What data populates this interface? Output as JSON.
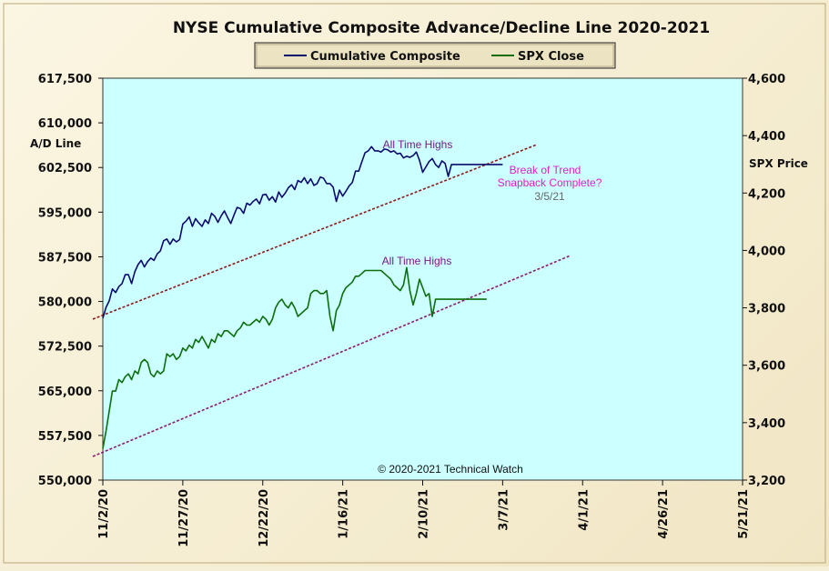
{
  "chart_data": {
    "type": "line",
    "title": "NYSE Cumulative  Composite Advance/Decline Line 2020-2021",
    "ylabel_left": "A/D Line",
    "ylabel_right": "SPX Price",
    "ylim_left": [
      550000,
      617500
    ],
    "ylim_right": [
      3200,
      4600
    ],
    "x_tick_labels": [
      "11/2/20",
      "11/27/20",
      "12/22/20",
      "1/16/21",
      "2/10/21",
      "3/7/21",
      "4/1/21",
      "4/26/21",
      "5/21/21"
    ],
    "x_tick_values": [
      0,
      25,
      50,
      75,
      100,
      125,
      150,
      175,
      200
    ],
    "y_tick_labels_left": [
      "550,000",
      "557,500",
      "565,000",
      "572,500",
      "580,000",
      "587,500",
      "595,000",
      "602,500",
      "610,000",
      "617,500"
    ],
    "y_tick_values_left": [
      550000,
      557500,
      565000,
      572500,
      580000,
      587500,
      595000,
      602500,
      610000,
      617500
    ],
    "y_tick_labels_right": [
      "3,200",
      "3,400",
      "3,600",
      "3,800",
      "4,000",
      "4,200",
      "4,400",
      "4,600"
    ],
    "y_tick_values_right": [
      3200,
      3400,
      3600,
      3800,
      4000,
      4200,
      4400,
      4600
    ],
    "legend": {
      "position": "top-center",
      "entries": [
        "Cumulative Composite",
        "SPX Close"
      ]
    },
    "grid": false,
    "series": [
      {
        "name": "Cumulative Composite",
        "axis": "left",
        "color": "#0a0a6e",
        "x": [
          0,
          1,
          2,
          3,
          4,
          5,
          6,
          7,
          8,
          9,
          10,
          11,
          12,
          13,
          14,
          15,
          16,
          17,
          18,
          19,
          20,
          21,
          22,
          23,
          24,
          25,
          26,
          27,
          28,
          29,
          30,
          31,
          32,
          33,
          34,
          35,
          36,
          37,
          38,
          39,
          40,
          41,
          42,
          43,
          44,
          45,
          46,
          47,
          48,
          49,
          50,
          51,
          52,
          53,
          54,
          55,
          56,
          57,
          58,
          59,
          60,
          61,
          62,
          63,
          64,
          65,
          66,
          67,
          68,
          69,
          70,
          71,
          72,
          73,
          74,
          75,
          76,
          77,
          78,
          79,
          80,
          81,
          82,
          83,
          84,
          85,
          86,
          87,
          88,
          89,
          90,
          91,
          92,
          93,
          94,
          95,
          96,
          97,
          98,
          99,
          100,
          101,
          102,
          103,
          104,
          105,
          106,
          107,
          108,
          109,
          110,
          111,
          112,
          113,
          114,
          115,
          116,
          117,
          118,
          119,
          120,
          121,
          122,
          123,
          124,
          125
        ],
        "values": [
          577200,
          579000,
          580100,
          582100,
          581500,
          582500,
          583000,
          584500,
          584500,
          583000,
          585000,
          586200,
          586900,
          585800,
          586700,
          587300,
          586900,
          588000,
          588500,
          590200,
          590500,
          589600,
          590500,
          590000,
          590400,
          593000,
          593500,
          594200,
          592600,
          593900,
          593200,
          592600,
          593700,
          593100,
          594800,
          594300,
          593300,
          594400,
          595200,
          594100,
          593100,
          594500,
          595800,
          595600,
          594800,
          596500,
          596200,
          596800,
          597200,
          596400,
          597900,
          598000,
          597000,
          597600,
          596700,
          598400,
          597500,
          598200,
          599100,
          599600,
          598800,
          600300,
          600000,
          600800,
          599800,
          600600,
          599500,
          599800,
          600900,
          600700,
          599800,
          599800,
          599200,
          596800,
          598700,
          597700,
          598500,
          599400,
          600000,
          601900,
          601900,
          603500,
          605000,
          605300,
          606000,
          605300,
          605300,
          605100,
          605600,
          605500,
          605100,
          605300,
          604800,
          604900,
          604100,
          604400,
          604200,
          604500,
          605100,
          603700,
          601700,
          602600,
          603500,
          604000,
          603000,
          602500,
          603600,
          603200,
          601000,
          603000,
          603000,
          603000,
          603000,
          603000,
          603000,
          603000,
          603000,
          603000,
          603000,
          603000,
          603000,
          603000,
          603000,
          603000,
          603000,
          603000
        ]
      },
      {
        "name": "SPX Close",
        "axis": "right",
        "color": "#0d6e0d",
        "x": [
          0,
          1,
          2,
          3,
          4,
          5,
          6,
          7,
          8,
          9,
          10,
          11,
          12,
          13,
          14,
          15,
          16,
          17,
          18,
          19,
          20,
          21,
          22,
          23,
          24,
          25,
          26,
          27,
          28,
          29,
          30,
          31,
          32,
          33,
          34,
          35,
          36,
          37,
          38,
          39,
          40,
          41,
          42,
          43,
          44,
          45,
          46,
          47,
          48,
          49,
          50,
          51,
          52,
          53,
          54,
          55,
          56,
          57,
          58,
          59,
          60,
          61,
          62,
          63,
          64,
          65,
          66,
          67,
          68,
          69,
          70,
          71,
          72,
          73,
          74,
          75,
          76,
          77,
          78,
          79,
          80,
          81,
          82,
          83,
          84,
          85,
          86,
          87,
          88,
          89,
          90,
          91,
          92,
          93,
          94,
          95,
          96,
          97,
          98,
          99,
          100,
          101,
          102,
          103,
          104,
          105,
          106,
          107,
          108,
          109,
          110,
          111,
          112,
          113,
          114,
          115,
          116,
          117,
          118,
          119,
          120
        ],
        "values": [
          3310,
          3370,
          3440,
          3510,
          3510,
          3550,
          3540,
          3560,
          3570,
          3550,
          3580,
          3570,
          3610,
          3620,
          3610,
          3570,
          3560,
          3580,
          3570,
          3580,
          3640,
          3630,
          3640,
          3620,
          3630,
          3660,
          3650,
          3670,
          3660,
          3690,
          3680,
          3700,
          3680,
          3660,
          3690,
          3680,
          3710,
          3700,
          3720,
          3720,
          3710,
          3700,
          3720,
          3730,
          3750,
          3740,
          3740,
          3750,
          3760,
          3750,
          3770,
          3760,
          3740,
          3760,
          3800,
          3820,
          3830,
          3810,
          3800,
          3820,
          3800,
          3770,
          3780,
          3790,
          3800,
          3850,
          3860,
          3860,
          3850,
          3850,
          3860,
          3770,
          3720,
          3790,
          3810,
          3850,
          3870,
          3880,
          3890,
          3910,
          3910,
          3920,
          3930,
          3930,
          3930,
          3930,
          3930,
          3930,
          3920,
          3910,
          3900,
          3880,
          3870,
          3860,
          3880,
          3940,
          3860,
          3810,
          3850,
          3900,
          3870,
          3840,
          3850,
          3770,
          3830,
          3830,
          3830,
          3830,
          3830,
          3830,
          3830,
          3830,
          3830,
          3830,
          3830,
          3830,
          3830,
          3830,
          3830,
          3830,
          3830
        ]
      }
    ],
    "annotations": [
      "All Time Highs",
      "Break of Trend",
      "Snapback Complete?",
      "3/5/21",
      "All Time Highs",
      "© 2020-2021  Technical Watch"
    ]
  },
  "colors": {
    "plot_bg": "#ccffff",
    "ad_line": "#0a0a6e",
    "spx_line": "#0d6e0d",
    "trend_upper": "#8b1a1a",
    "trend_lower": "#8b1a6e",
    "ath_text": "#7a1a8b",
    "break_text": "#e020c0",
    "date_text": "#666666"
  }
}
